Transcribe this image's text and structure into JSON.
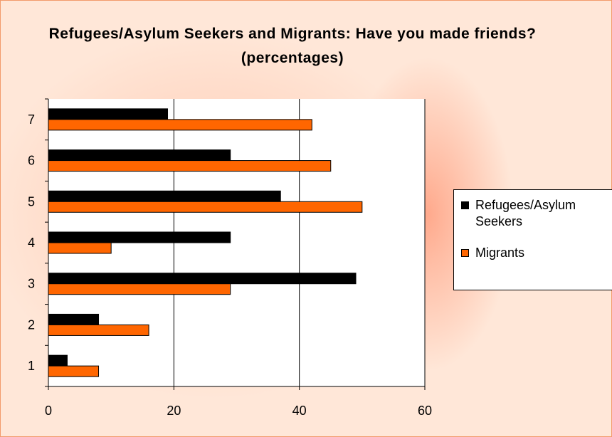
{
  "chart_data": {
    "type": "bar",
    "orientation": "horizontal",
    "title": "Refugees/Asylum Seekers and Migrants: Have you made friends? (percentages)",
    "categories": [
      "1",
      "2",
      "3",
      "4",
      "5",
      "6",
      "7"
    ],
    "series": [
      {
        "name": "Refugees/Asylum Seekers",
        "color": "#000000",
        "values": [
          3,
          8,
          49,
          29,
          37,
          29,
          19
        ]
      },
      {
        "name": "Migrants",
        "color": "#ff6600",
        "values": [
          8,
          16,
          29,
          10,
          50,
          45,
          42
        ]
      }
    ],
    "xlim": [
      0,
      60
    ],
    "xticks": [
      "0",
      "20",
      "40",
      "60"
    ],
    "grid": true,
    "legend_position": "right"
  },
  "colors": {
    "background": "#ffe7d8",
    "plot_area": "#ffffff",
    "refugees": "#000000",
    "migrants": "#ff6600"
  }
}
